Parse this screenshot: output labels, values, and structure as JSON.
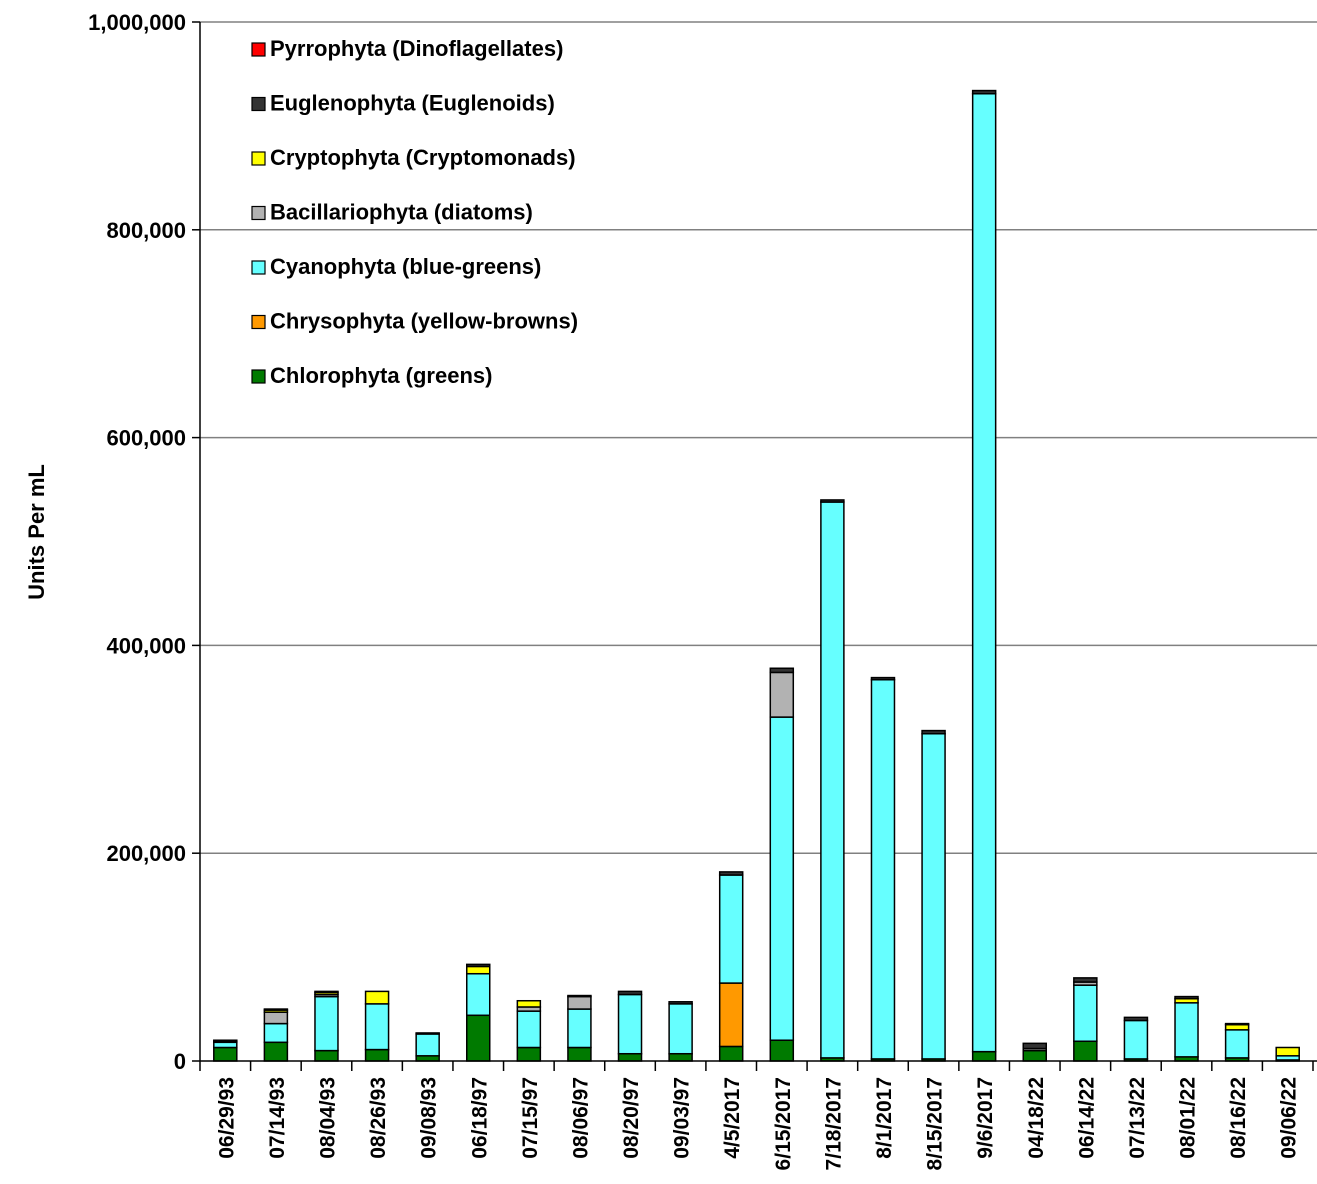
{
  "chart_data": {
    "type": "bar",
    "stacked": true,
    "title": "",
    "xlabel": "",
    "ylabel": "Units Per mL",
    "ylim": [
      0,
      1000000
    ],
    "yticks": [
      0,
      200000,
      400000,
      600000,
      800000,
      1000000
    ],
    "ytick_labels": [
      "0",
      "200,000",
      "400,000",
      "600,000",
      "800,000",
      "1,000,000"
    ],
    "grid": true,
    "legend_position": "top-left",
    "categories": [
      "06/29/93",
      "07/14/93",
      "08/04/93",
      "08/26/93",
      "09/08/93",
      "06/18/97",
      "07/15/97",
      "08/06/97",
      "08/20/97",
      "09/03/97",
      "4/5/2017",
      "6/15/2017",
      "7/18/2017",
      "8/1/2017",
      "8/15/2017",
      "9/6/2017",
      "04/18/22",
      "06/14/22",
      "07/13/22",
      "08/01/22",
      "08/16/22",
      "09/06/22"
    ],
    "series": [
      {
        "name": "Chlorophyta (greens)",
        "color": "#007A00",
        "values": [
          13000,
          18000,
          10000,
          11000,
          5000,
          44000,
          13000,
          13000,
          7000,
          7000,
          14000,
          20000,
          3000,
          2000,
          2000,
          9000,
          10000,
          19000,
          2000,
          4000,
          3000,
          1000
        ]
      },
      {
        "name": "Chrysophyta (yellow-browns)",
        "color": "#FF9900",
        "values": [
          0,
          0,
          0,
          0,
          0,
          0,
          0,
          0,
          0,
          0,
          61000,
          0,
          0,
          0,
          0,
          0,
          0,
          0,
          0,
          0,
          0,
          0
        ]
      },
      {
        "name": "Cyanophyta (blue-greens)",
        "color": "#66FFFF",
        "values": [
          5000,
          18000,
          52000,
          44000,
          21000,
          40000,
          35000,
          37000,
          57000,
          48000,
          104000,
          311000,
          535000,
          365000,
          313000,
          922000,
          0,
          54000,
          37000,
          52000,
          27000,
          4000
        ]
      },
      {
        "name": "Bacillariophyta (diatoms)",
        "color": "#B2B2B2",
        "values": [
          1000,
          11000,
          2000,
          0,
          0,
          0,
          4000,
          12000,
          0,
          0,
          0,
          43000,
          0,
          0,
          0,
          0,
          2000,
          3000,
          0,
          0,
          0,
          0
        ]
      },
      {
        "name": "Cryptophyta (Cryptomonads)",
        "color": "#FFFF00",
        "values": [
          0,
          2000,
          2000,
          12000,
          0,
          7000,
          6000,
          0,
          0,
          0,
          0,
          0,
          0,
          0,
          0,
          0,
          0,
          0,
          0,
          4000,
          5000,
          8000
        ]
      },
      {
        "name": "Euglenophyta (Euglenoids)",
        "color": "#333333",
        "values": [
          1000,
          1000,
          1000,
          0,
          1000,
          2000,
          0,
          1000,
          3000,
          2000,
          3000,
          4000,
          2000,
          2000,
          3000,
          3000,
          5000,
          4000,
          3000,
          2000,
          1000,
          0
        ]
      },
      {
        "name": "Pyrrophyta (Dinoflagellates)",
        "color": "#FF0000",
        "values": [
          0,
          0,
          0,
          0,
          0,
          0,
          0,
          0,
          0,
          0,
          0,
          0,
          0,
          0,
          0,
          0,
          0,
          0,
          0,
          0,
          0,
          0
        ]
      }
    ]
  }
}
